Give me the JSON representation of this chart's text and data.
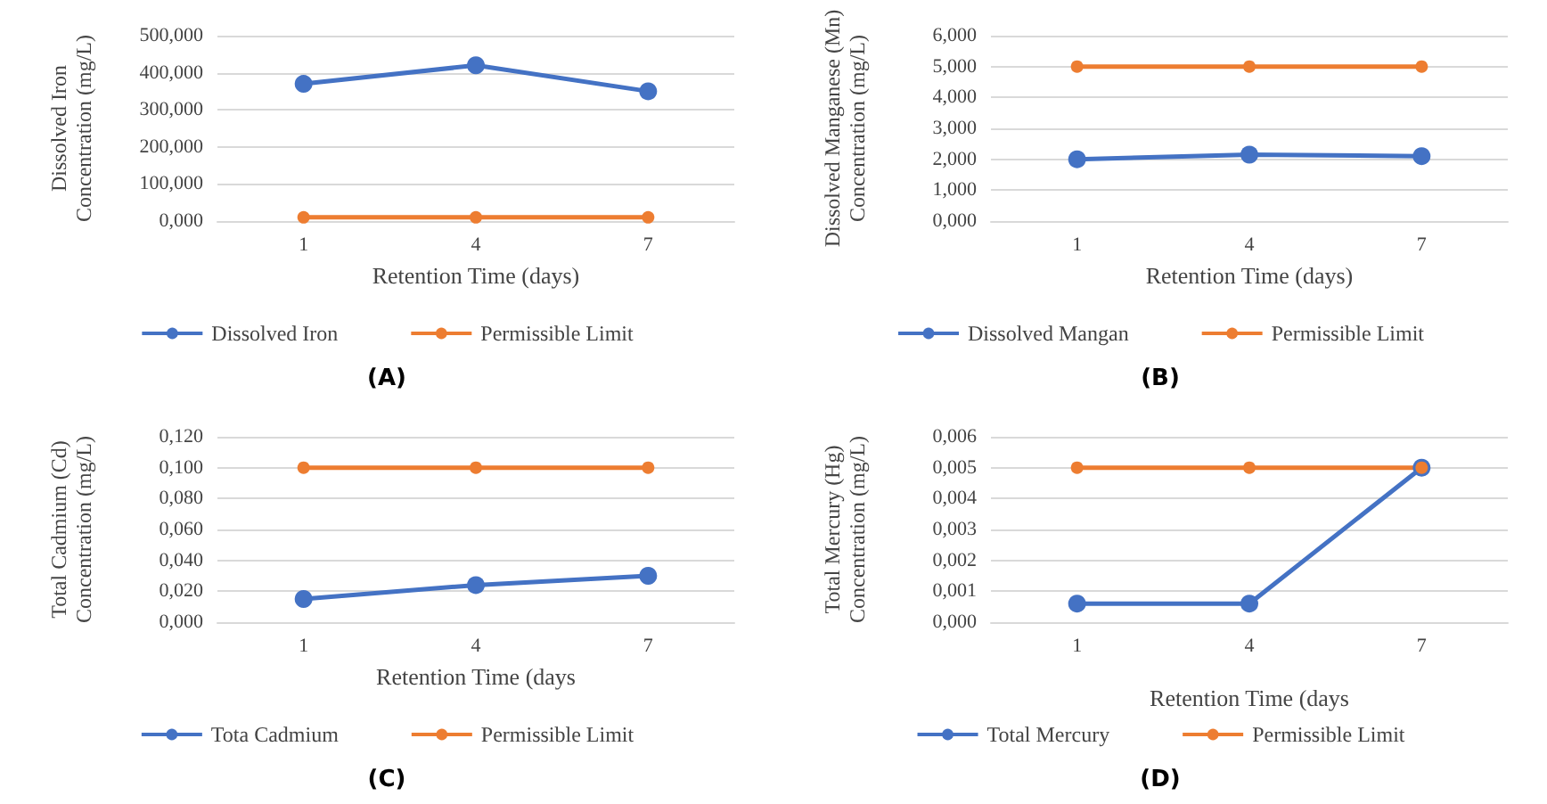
{
  "chart_data": [
    {
      "type": "line",
      "title": "(A)",
      "xlabel": "Retention Time (days)",
      "ylabel": "Dissolved Iron Concentration (mg/L)",
      "categories": [
        "1",
        "4",
        "7"
      ],
      "series": [
        {
          "name": "Dissolved Iron",
          "color": "#4472c4",
          "values": [
            370,
            420,
            350
          ]
        },
        {
          "name": "Permissible Limit",
          "color": "#ed7d31",
          "values": [
            10,
            10,
            10
          ]
        }
      ],
      "ylim": [
        0,
        500
      ],
      "yticks": [
        {
          "value": 0,
          "label": "0,000"
        },
        {
          "value": 100,
          "label": "100,000"
        },
        {
          "value": 200,
          "label": "200,000"
        },
        {
          "value": 300,
          "label": "300,000"
        },
        {
          "value": 400,
          "label": "400,000"
        },
        {
          "value": 500,
          "label": "500,000"
        }
      ],
      "grid": "y",
      "legend": "bottom",
      "marker": "circle",
      "line_style": "solid"
    },
    {
      "type": "line",
      "title": "(B)",
      "xlabel": "Retention Time (days)",
      "ylabel": "Dissolved Manganese (Mn) Concentration (mg/L)",
      "categories": [
        "1",
        "4",
        "7"
      ],
      "series": [
        {
          "name": "Dissolved Mangan",
          "color": "#4472c4",
          "values": [
            2.0,
            2.15,
            2.1
          ]
        },
        {
          "name": "Permissible Limit",
          "color": "#ed7d31",
          "values": [
            5,
            5,
            5
          ]
        }
      ],
      "ylim": [
        0,
        6
      ],
      "yticks": [
        {
          "value": 0,
          "label": "0,000"
        },
        {
          "value": 1,
          "label": "1,000"
        },
        {
          "value": 2,
          "label": "2,000"
        },
        {
          "value": 3,
          "label": "3,000"
        },
        {
          "value": 4,
          "label": "4,000"
        },
        {
          "value": 5,
          "label": "5,000"
        },
        {
          "value": 6,
          "label": "6,000"
        }
      ],
      "grid": "y",
      "legend": "bottom",
      "marker": "circle",
      "line_style": "solid"
    },
    {
      "type": "line",
      "title": "(C)",
      "xlabel": "Retention Time (days",
      "ylabel": "Total Cadmium (Cd) Concentration (mg/L)",
      "categories": [
        "1",
        "4",
        "7"
      ],
      "series": [
        {
          "name": "Tota Cadmium",
          "color": "#4472c4",
          "values": [
            0.015,
            0.024,
            0.03
          ]
        },
        {
          "name": "Permissible Limit",
          "color": "#ed7d31",
          "values": [
            0.1,
            0.1,
            0.1
          ]
        }
      ],
      "ylim": [
        0,
        0.12
      ],
      "yticks": [
        {
          "value": 0,
          "label": "0,000"
        },
        {
          "value": 0.02,
          "label": "0,020"
        },
        {
          "value": 0.04,
          "label": "0,040"
        },
        {
          "value": 0.06,
          "label": "0,060"
        },
        {
          "value": 0.08,
          "label": "0,080"
        },
        {
          "value": 0.1,
          "label": "0,100"
        },
        {
          "value": 0.12,
          "label": "0,120"
        }
      ],
      "grid": "y",
      "legend": "bottom",
      "marker": "circle",
      "line_style": "solid"
    },
    {
      "type": "line",
      "title": "(D)",
      "xlabel": "Retention Time (days",
      "ylabel": "Total Mercury (Hg) Concentration (mg/L)",
      "categories": [
        "1",
        "4",
        "7"
      ],
      "series": [
        {
          "name": "Total Mercury",
          "color": "#4472c4",
          "values": [
            0.0006,
            0.0006,
            0.005
          ]
        },
        {
          "name": "Permissible Limit",
          "color": "#ed7d31",
          "values": [
            0.005,
            0.005,
            0.005
          ]
        }
      ],
      "ylim": [
        0,
        0.006
      ],
      "yticks": [
        {
          "value": 0,
          "label": "0,000"
        },
        {
          "value": 0.001,
          "label": "0,001"
        },
        {
          "value": 0.002,
          "label": "0,002"
        },
        {
          "value": 0.003,
          "label": "0,003"
        },
        {
          "value": 0.004,
          "label": "0,004"
        },
        {
          "value": 0.005,
          "label": "0,005"
        },
        {
          "value": 0.006,
          "label": "0,006"
        }
      ],
      "grid": "y",
      "legend": "bottom",
      "marker": "circle",
      "line_style": "solid"
    }
  ]
}
